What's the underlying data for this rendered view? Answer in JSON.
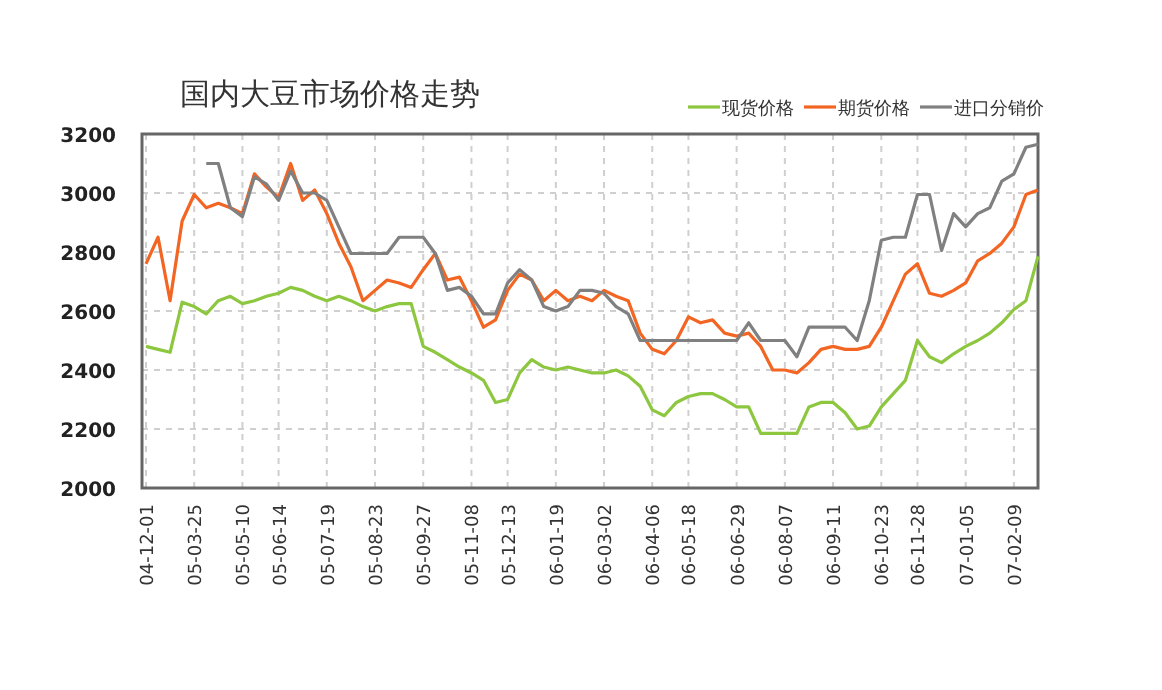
{
  "chart_data": {
    "type": "line",
    "title": "国内大豆市场价格走势",
    "categories": [
      "04-12-01",
      null,
      null,
      null,
      "05-03-25",
      null,
      null,
      null,
      "05-05-10",
      null,
      null,
      "05-06-14",
      null,
      null,
      null,
      "05-07-19",
      null,
      null,
      null,
      "05-08-23",
      null,
      null,
      null,
      "05-09-27",
      null,
      null,
      null,
      "05-11-08",
      null,
      null,
      "05-12-13",
      null,
      null,
      null,
      "06-01-19",
      null,
      null,
      null,
      "06-03-02",
      null,
      null,
      null,
      "06-04-06",
      null,
      null,
      "06-05-18",
      null,
      null,
      null,
      "06-06-29",
      null,
      null,
      null,
      "06-08-07",
      null,
      null,
      null,
      "06-09-11",
      null,
      null,
      null,
      "06-10-23",
      null,
      null,
      "06-11-28",
      null,
      null,
      null,
      "07-01-05",
      null,
      null,
      null,
      "07-02-09",
      null,
      null
    ],
    "series": [
      {
        "name": "现货价格",
        "color": "#8dc63f",
        "values": [
          2480,
          2470,
          2460,
          2630,
          2615,
          2590,
          2635,
          2650,
          2625,
          2635,
          2650,
          2660,
          2680,
          2670,
          2650,
          2635,
          2650,
          2635,
          2615,
          2600,
          2615,
          2625,
          2625,
          2480,
          2460,
          2435,
          2410,
          2390,
          2365,
          2290,
          2300,
          2390,
          2435,
          2410,
          2400,
          2410,
          2400,
          2390,
          2390,
          2400,
          2380,
          2345,
          2265,
          2245,
          2290,
          2310,
          2320,
          2320,
          2300,
          2275,
          2275,
          2185,
          2185,
          2185,
          2185,
          2275,
          2290,
          2290,
          2255,
          2200,
          2210,
          2275,
          2320,
          2365,
          2500,
          2445,
          2425,
          2455,
          2480,
          2500,
          2525,
          2560,
          2605,
          2635,
          2785
        ]
      },
      {
        "name": "期货价格",
        "color": "#f26522",
        "values": [
          2760,
          2850,
          2635,
          2905,
          2995,
          2950,
          2965,
          2950,
          2930,
          3065,
          3020,
          2985,
          3100,
          2975,
          3010,
          2930,
          2830,
          2750,
          2635,
          2670,
          2705,
          2695,
          2680,
          2740,
          2795,
          2705,
          2715,
          2635,
          2545,
          2570,
          2670,
          2725,
          2705,
          2635,
          2670,
          2635,
          2650,
          2635,
          2670,
          2650,
          2635,
          2525,
          2470,
          2455,
          2500,
          2580,
          2560,
          2570,
          2525,
          2515,
          2525,
          2480,
          2400,
          2400,
          2390,
          2425,
          2470,
          2480,
          2470,
          2470,
          2480,
          2545,
          2635,
          2725,
          2760,
          2660,
          2650,
          2670,
          2695,
          2770,
          2795,
          2830,
          2885,
          2995,
          3010
        ]
      },
      {
        "name": "进口分销价",
        "color": "#808080",
        "values": [
          null,
          null,
          null,
          null,
          null,
          3100,
          3100,
          2950,
          2920,
          3055,
          3030,
          2975,
          3075,
          3000,
          3000,
          2975,
          2885,
          2795,
          2795,
          2795,
          2795,
          2850,
          2850,
          2850,
          2795,
          2670,
          2680,
          2650,
          2590,
          2590,
          2695,
          2740,
          2705,
          2615,
          2600,
          2615,
          2670,
          2670,
          2660,
          2615,
          2590,
          2500,
          2500,
          2500,
          2500,
          2500,
          2500,
          2500,
          2500,
          2500,
          2560,
          2500,
          2500,
          2500,
          2445,
          2545,
          2545,
          2545,
          2545,
          2500,
          2635,
          2840,
          2850,
          2850,
          2995,
          2995,
          2805,
          2930,
          2885,
          2930,
          2950,
          3040,
          3065,
          3155,
          3165
        ]
      }
    ],
    "ylim": [
      2000,
      3200
    ],
    "yticks": [
      2000,
      2200,
      2400,
      2600,
      2800,
      3000,
      3200
    ],
    "grid": true,
    "legend": "top right"
  }
}
